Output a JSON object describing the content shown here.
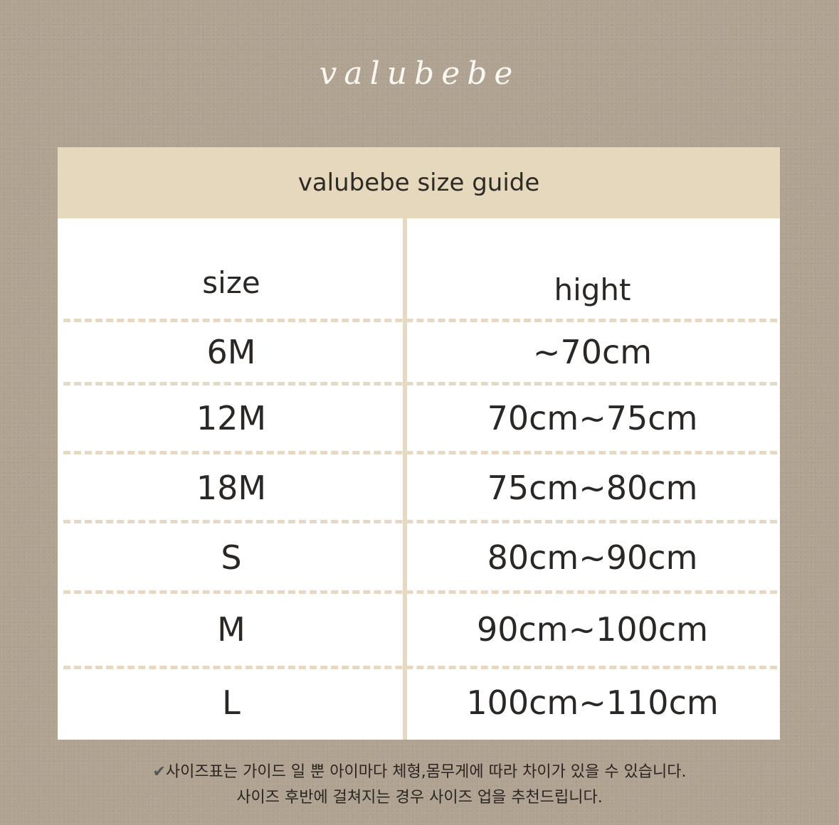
{
  "logo": "valubebe",
  "title": "valubebe size guide",
  "columns": [
    "size",
    "hight"
  ],
  "rows": [
    {
      "size": "6M",
      "height": "~70cm"
    },
    {
      "size": "12M",
      "height": "70cm~75cm"
    },
    {
      "size": "18M",
      "height": "75cm~80cm"
    },
    {
      "size": "S",
      "height": "80cm~90cm"
    },
    {
      "size": "M",
      "height": "90cm~100cm"
    },
    {
      "size": "L",
      "height": "100cm~110cm"
    }
  ],
  "notes": [
    "사이즈표는 가이드 일 뿐 아이마다 체형,몸무게에 따라 차이가 있을 수 있습니다.",
    "사이즈 후반에 걸쳐지는 경우 사이즈 업을 추천드립니다."
  ],
  "colors": {
    "background": "#b0a392",
    "header": "#e6d8bd",
    "divider": "#e5d9c3"
  }
}
